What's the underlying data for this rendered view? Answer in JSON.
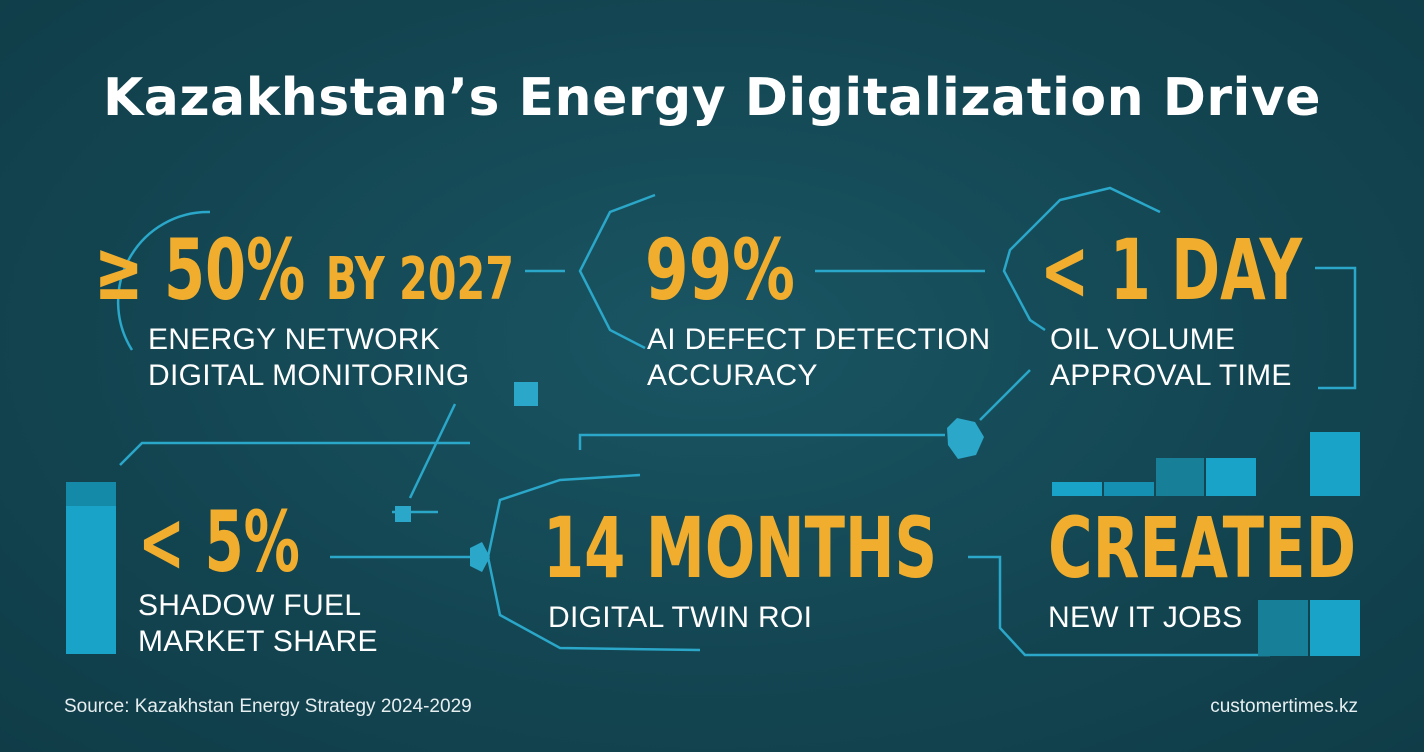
{
  "title": "Kazakhstan’s Energy Digitalization Drive",
  "stats": [
    {
      "value": "≥ 50%",
      "suffix": "BY 2027",
      "line1": "ENERGY NETWORK",
      "line2": "DIGITAL MONITORING"
    },
    {
      "value": "99%",
      "line1": "AI DEFECT DETECTION",
      "line2": "ACCURACY"
    },
    {
      "value": "< 1 DAY",
      "line1": "OIL VOLUME",
      "line2": "APPROVAL TIME"
    },
    {
      "value": "< 5%",
      "line1": "SHADOW FUEL",
      "line2": "MARKET SHARE"
    },
    {
      "value": "14 MONTHS",
      "line1": "DIGITAL TWIN ROI"
    },
    {
      "value": "CREATED",
      "line1": "NEW IT JOBS"
    }
  ],
  "footer": {
    "source": "Source: Kazakhstan Energy Strategy 2024-2029",
    "site": "customertimes.kz"
  },
  "colors": {
    "background": "#134652",
    "accent": "#f0ad2e",
    "line": "#2aa7c9",
    "text": "#ffffff"
  }
}
